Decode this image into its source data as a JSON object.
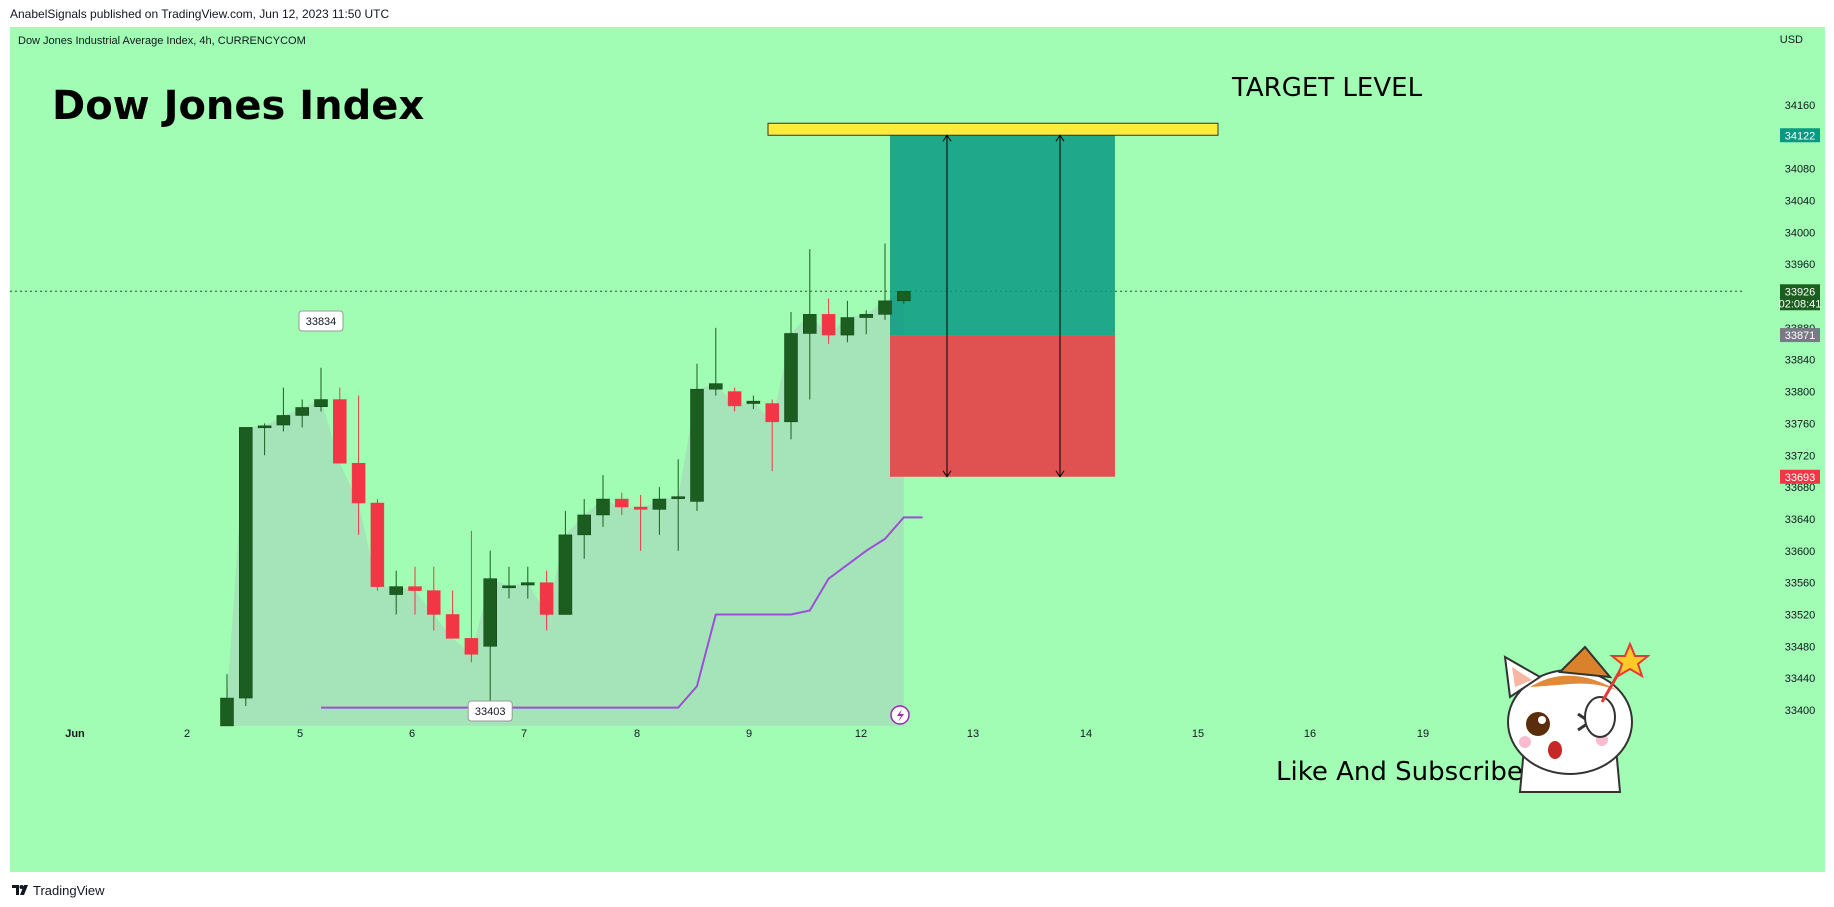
{
  "published": "AnabelSignals published on TradingView.com, Jun 12, 2023 11:50 UTC",
  "symbol": "Dow Jones Industrial Average Index, 4h, CURRENCYCOM",
  "currency": "USD",
  "headline": "Dow Jones Index",
  "target_label": "TARGET LEVEL",
  "like_subscribe": "Like And Subscribe",
  "footer_brand": "TradingView",
  "colors": {
    "background": "#a0fdb3",
    "bull": "#1b5e20",
    "bear": "#f23645",
    "profit_zone": "#089981",
    "loss_zone": "#e05252",
    "target_bar": "#ffeb3b",
    "stop_line": "#9c4fd6",
    "area_fill": "#a4dfb9"
  },
  "chart_data": {
    "type": "candlestick",
    "title": "Dow Jones Industrial Average Index, 4h, CURRENCYCOM",
    "ylim": [
      33380,
      34200
    ],
    "y_ticks": [
      34160,
      34080,
      34040,
      34000,
      33960,
      33880,
      33840,
      33800,
      33760,
      33720,
      33680,
      33640,
      33600,
      33560,
      33520,
      33480,
      33440,
      33400
    ],
    "x_tick_labels": [
      "Jun",
      "2",
      "5",
      "6",
      "7",
      "8",
      "9",
      "12",
      "13",
      "14",
      "15",
      "16",
      "19"
    ],
    "candles": [
      {
        "o": 33380,
        "h": 33445,
        "l": 33380,
        "c": 33415
      },
      {
        "o": 33415,
        "h": 33755,
        "l": 33405,
        "c": 33755
      },
      {
        "o": 33755,
        "h": 33760,
        "l": 33720,
        "c": 33757
      },
      {
        "o": 33758,
        "h": 33805,
        "l": 33750,
        "c": 33770
      },
      {
        "o": 33770,
        "h": 33790,
        "l": 33755,
        "c": 33780
      },
      {
        "o": 33781,
        "h": 33830,
        "l": 33775,
        "c": 33790
      },
      {
        "o": 33790,
        "h": 33805,
        "l": 33710,
        "c": 33710
      },
      {
        "o": 33710,
        "h": 33795,
        "l": 33620,
        "c": 33660
      },
      {
        "o": 33660,
        "h": 33665,
        "l": 33550,
        "c": 33555
      },
      {
        "o": 33545,
        "h": 33575,
        "l": 33520,
        "c": 33555
      },
      {
        "o": 33555,
        "h": 33580,
        "l": 33520,
        "c": 33550
      },
      {
        "o": 33550,
        "h": 33580,
        "l": 33500,
        "c": 33520
      },
      {
        "o": 33520,
        "h": 33550,
        "l": 33490,
        "c": 33490
      },
      {
        "o": 33490,
        "h": 33625,
        "l": 33460,
        "c": 33470
      },
      {
        "o": 33480,
        "h": 33600,
        "l": 33403,
        "c": 33565
      },
      {
        "o": 33555,
        "h": 33580,
        "l": 33540,
        "c": 33556
      },
      {
        "o": 33557,
        "h": 33580,
        "l": 33540,
        "c": 33560
      },
      {
        "o": 33560,
        "h": 33575,
        "l": 33500,
        "c": 33520
      },
      {
        "o": 33520,
        "h": 33650,
        "l": 33520,
        "c": 33620
      },
      {
        "o": 33620,
        "h": 33665,
        "l": 33590,
        "c": 33645
      },
      {
        "o": 33645,
        "h": 33695,
        "l": 33630,
        "c": 33665
      },
      {
        "o": 33665,
        "h": 33673,
        "l": 33645,
        "c": 33655
      },
      {
        "o": 33655,
        "h": 33670,
        "l": 33600,
        "c": 33652
      },
      {
        "o": 33652,
        "h": 33680,
        "l": 33620,
        "c": 33665
      },
      {
        "o": 33667,
        "h": 33715,
        "l": 33600,
        "c": 33668
      },
      {
        "o": 33662,
        "h": 33835,
        "l": 33650,
        "c": 33803
      },
      {
        "o": 33803,
        "h": 33880,
        "l": 33795,
        "c": 33810
      },
      {
        "o": 33800,
        "h": 33805,
        "l": 33775,
        "c": 33782
      },
      {
        "o": 33785,
        "h": 33795,
        "l": 33778,
        "c": 33788
      },
      {
        "o": 33785,
        "h": 33790,
        "l": 33700,
        "c": 33762
      },
      {
        "o": 33762,
        "h": 33900,
        "l": 33740,
        "c": 33873
      },
      {
        "o": 33873,
        "h": 33979,
        "l": 33790,
        "c": 33897
      },
      {
        "o": 33897,
        "h": 33917,
        "l": 33860,
        "c": 33871
      },
      {
        "o": 33871,
        "h": 33914,
        "l": 33862,
        "c": 33893
      },
      {
        "o": 33893,
        "h": 33902,
        "l": 33872,
        "c": 33897
      },
      {
        "o": 33897,
        "h": 33986,
        "l": 33890,
        "c": 33914
      },
      {
        "o": 33914,
        "h": 33926,
        "l": 33910,
        "c": 33926
      }
    ],
    "annotations": {
      "high_label": "33834",
      "low_label": "33403"
    },
    "price_labels": {
      "target": "34122",
      "current": "33926",
      "countdown": "02:08:41",
      "entry": "33871",
      "stop": "33693"
    },
    "levels": {
      "target": 34122,
      "current": 33926,
      "entry": 33871,
      "stop": 33693
    },
    "trailing_stop": [
      {
        "i": 5,
        "v": 33403
      },
      {
        "i": 24,
        "v": 33403
      },
      {
        "i": 25,
        "v": 33430
      },
      {
        "i": 26,
        "v": 33520
      },
      {
        "i": 30,
        "v": 33520
      },
      {
        "i": 31,
        "v": 33525
      },
      {
        "i": 32,
        "v": 33565
      },
      {
        "i": 34,
        "v": 33600
      },
      {
        "i": 35,
        "v": 33615
      },
      {
        "i": 36,
        "v": 33642
      },
      {
        "i": 37,
        "v": 33642
      }
    ]
  }
}
